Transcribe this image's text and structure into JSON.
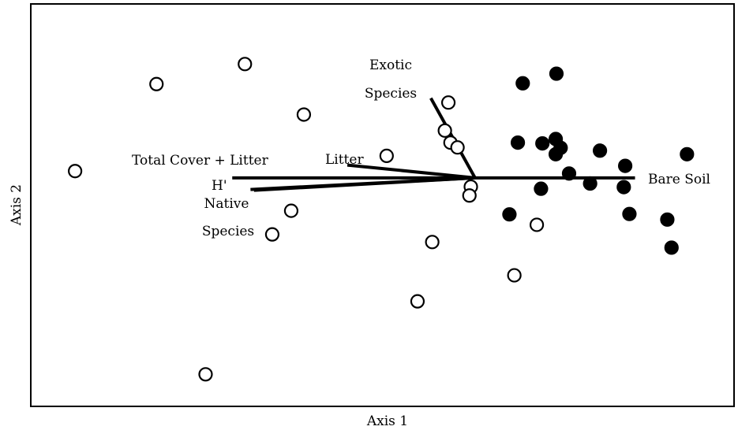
{
  "chart_data": {
    "type": "scatter",
    "title": "",
    "xlabel": "Axis 1",
    "ylabel": "Axis 2",
    "xlim": [
      0,
      100
    ],
    "ylim": [
      0,
      100
    ],
    "grid": false,
    "legend": "none",
    "series": [
      {
        "marker": "open-circle",
        "points": [
          {
            "x": 6.2,
            "y": 58.5
          },
          {
            "x": 17.8,
            "y": 80.2
          },
          {
            "x": 30.4,
            "y": 85.2
          },
          {
            "x": 38.8,
            "y": 72.6
          },
          {
            "x": 50.6,
            "y": 62.3
          },
          {
            "x": 59.4,
            "y": 75.6
          },
          {
            "x": 58.9,
            "y": 68.6
          },
          {
            "x": 59.7,
            "y": 65.6
          },
          {
            "x": 60.7,
            "y": 64.4
          },
          {
            "x": 62.6,
            "y": 54.6
          },
          {
            "x": 62.4,
            "y": 52.4
          },
          {
            "x": 37.0,
            "y": 48.6
          },
          {
            "x": 34.3,
            "y": 42.7
          },
          {
            "x": 57.1,
            "y": 40.8
          },
          {
            "x": 72.0,
            "y": 45.1
          },
          {
            "x": 68.8,
            "y": 32.5
          },
          {
            "x": 55.0,
            "y": 26.0
          },
          {
            "x": 24.8,
            "y": 7.8
          }
        ]
      },
      {
        "marker": "filled-circle",
        "points": [
          {
            "x": 70.0,
            "y": 80.4
          },
          {
            "x": 74.8,
            "y": 82.8
          },
          {
            "x": 69.3,
            "y": 65.6
          },
          {
            "x": 72.8,
            "y": 65.4
          },
          {
            "x": 74.7,
            "y": 66.5
          },
          {
            "x": 75.4,
            "y": 64.3
          },
          {
            "x": 74.7,
            "y": 62.7
          },
          {
            "x": 81.0,
            "y": 63.6
          },
          {
            "x": 93.4,
            "y": 62.7
          },
          {
            "x": 84.6,
            "y": 59.8
          },
          {
            "x": 76.6,
            "y": 57.9
          },
          {
            "x": 79.6,
            "y": 55.4
          },
          {
            "x": 84.4,
            "y": 54.5
          },
          {
            "x": 72.6,
            "y": 54.1
          },
          {
            "x": 68.1,
            "y": 47.7
          },
          {
            "x": 85.2,
            "y": 47.8
          },
          {
            "x": 90.6,
            "y": 46.4
          },
          {
            "x": 91.2,
            "y": 39.4
          }
        ]
      }
    ],
    "vectors": {
      "origin": {
        "x": 63.2,
        "y": 56.8
      },
      "items": [
        {
          "label": "Exotic Species",
          "lines": [
            "Exotic",
            "Species"
          ],
          "x": 56.9,
          "y": 76.7
        },
        {
          "label": "Litter",
          "x": 45.0,
          "y": 60.0
        },
        {
          "label": "Total Cover + Litter",
          "x": 28.6,
          "y": 56.8
        },
        {
          "label": "H'",
          "x": 31.7,
          "y": 53.7
        },
        {
          "label": "Native Species",
          "lines": [
            "Native",
            "Species"
          ],
          "x": 31.2,
          "y": 53.9
        },
        {
          "label": "Bare Soil",
          "x": 86.0,
          "y": 56.8
        }
      ]
    }
  }
}
